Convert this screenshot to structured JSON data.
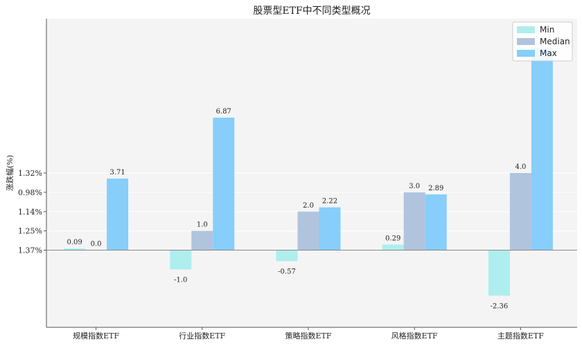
{
  "chart_data": {
    "type": "bar",
    "title": "股票型ETF中不同类型概况",
    "xlabel": "",
    "ylabel": "涨跌幅(%)",
    "categories": [
      "规模指数ETF",
      "行业指数ETF",
      "策略指数ETF",
      "风格指数ETF",
      "主题指数ETF"
    ],
    "series": [
      {
        "name": "Min",
        "values": [
          0.09,
          -1.0,
          -0.57,
          0.29,
          -2.36
        ],
        "color": "#afeeee"
      },
      {
        "name": "Median",
        "values": [
          0.0,
          1.0,
          2.0,
          3.0,
          4.0
        ],
        "color": "#b0c4de"
      },
      {
        "name": "Max",
        "values": [
          3.71,
          6.87,
          2.22,
          2.89,
          10.5
        ],
        "color": "#87cefa"
      }
    ],
    "data_labels": [
      [
        "0.09",
        "-1.0",
        "-0.57",
        "0.29",
        "-2.36"
      ],
      [
        "0.0",
        "1.0",
        "2.0",
        "3.0",
        "4.0"
      ],
      [
        "3.71",
        "6.87",
        "2.22",
        "2.89",
        ""
      ]
    ],
    "yticks": [
      {
        "value": 0,
        "label": "1.37%"
      },
      {
        "value": 1,
        "label": "1.25%"
      },
      {
        "value": 2,
        "label": "1.14%"
      },
      {
        "value": 3,
        "label": "0.98%"
      },
      {
        "value": 4,
        "label": "1.32%"
      }
    ],
    "ylim": [
      -4.0,
      12.0
    ],
    "grid": "y",
    "legend_position": "top-right",
    "colors": {
      "plot_bg": "#f4f4f4",
      "axis": "#555555",
      "grid": "#ffffff",
      "text": "#222222"
    }
  }
}
